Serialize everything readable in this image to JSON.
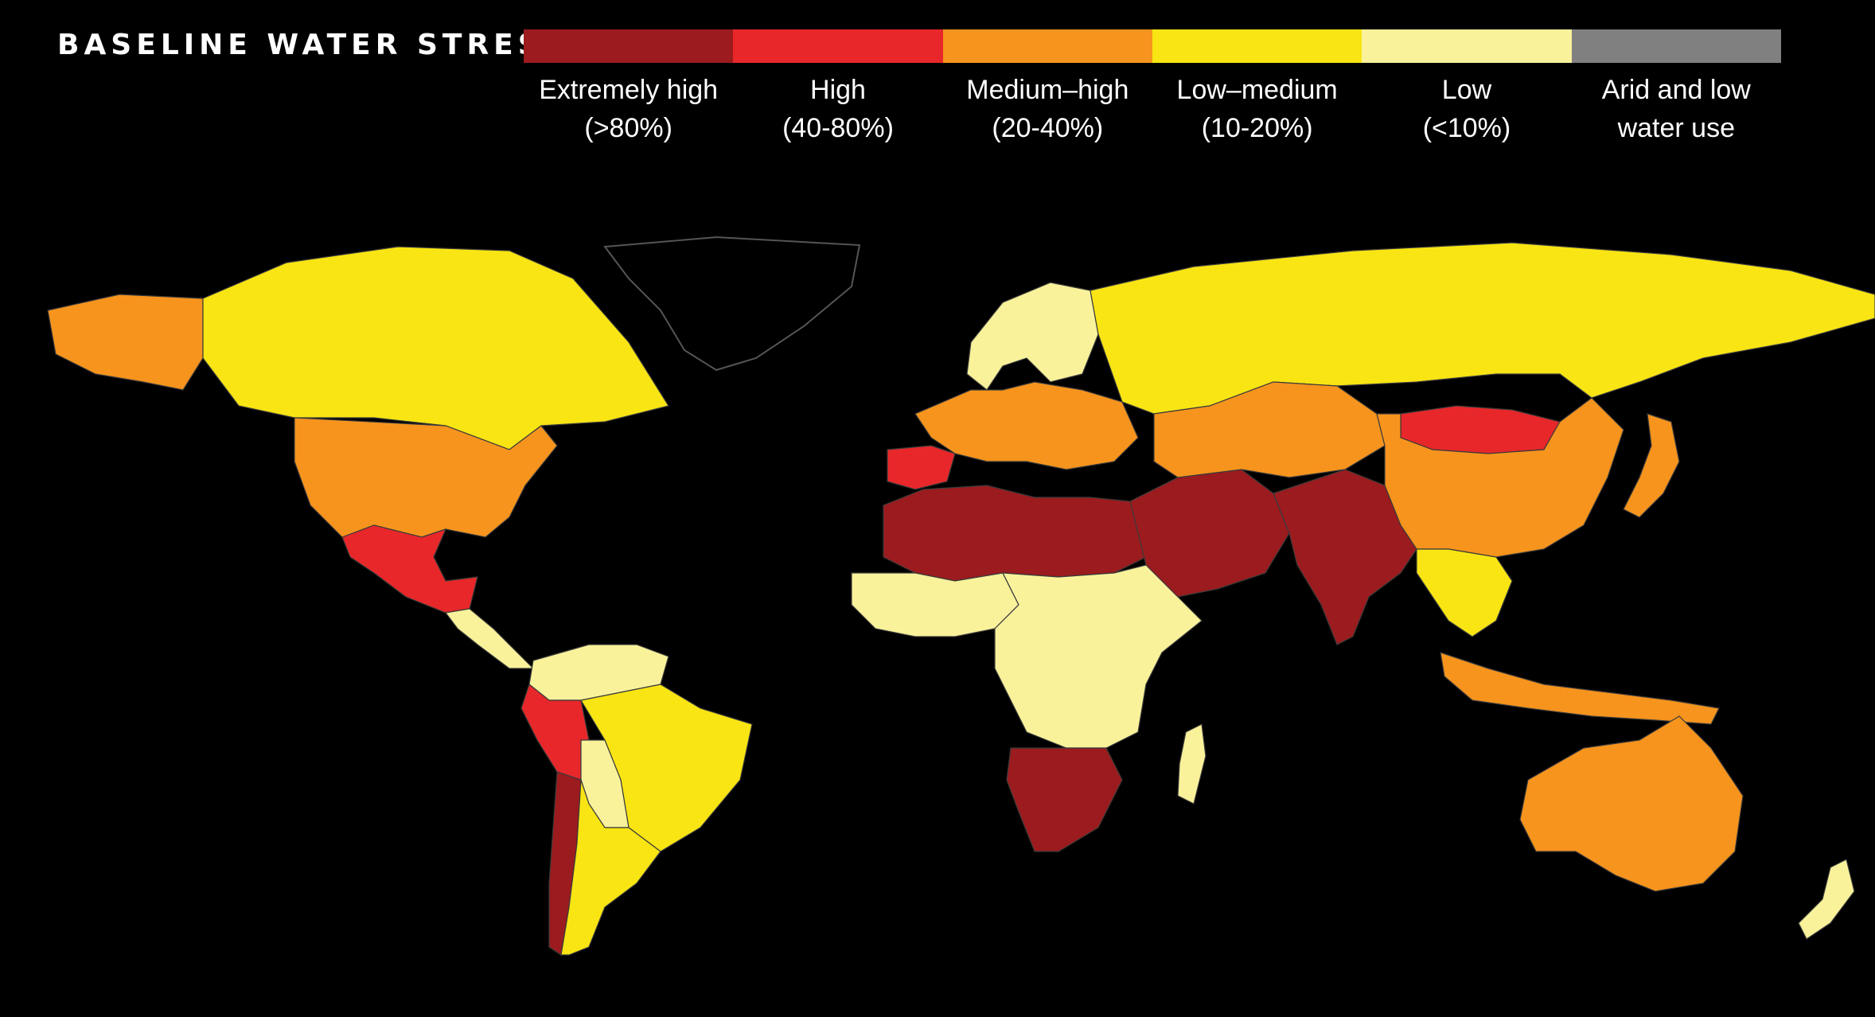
{
  "title": "BASELINE WATER STRESS",
  "legend": [
    {
      "line1": "Extremely high",
      "line2": "(>80%)",
      "color": "#9b1b1e"
    },
    {
      "line1": "High",
      "line2": "(40-80%)",
      "color": "#e8272a"
    },
    {
      "line1": "Medium–high",
      "line2": "(20-40%)",
      "color": "#f7941d"
    },
    {
      "line1": "Low–medium",
      "line2": "(10-20%)",
      "color": "#f8e513"
    },
    {
      "line1": "Low",
      "line2": "(<10%)",
      "color": "#f9f29b"
    },
    {
      "line1": "Arid and low",
      "line2": "water use",
      "color": "#808080"
    }
  ],
  "regions": [
    {
      "name": "greenland",
      "category": "none"
    },
    {
      "name": "alaska",
      "category": "Medium–high"
    },
    {
      "name": "canada",
      "category": "Low–medium"
    },
    {
      "name": "united-states",
      "category": "Medium–high"
    },
    {
      "name": "mexico",
      "category": "High"
    },
    {
      "name": "central-america",
      "category": "Low"
    },
    {
      "name": "colombia-venezuela",
      "category": "Low"
    },
    {
      "name": "brazil",
      "category": "Low–medium"
    },
    {
      "name": "peru",
      "category": "High"
    },
    {
      "name": "bolivia",
      "category": "Low"
    },
    {
      "name": "chile",
      "category": "Extremely high"
    },
    {
      "name": "argentina",
      "category": "Low–medium"
    },
    {
      "name": "scandinavia",
      "category": "Low"
    },
    {
      "name": "western-europe",
      "category": "Medium–high"
    },
    {
      "name": "iberia",
      "category": "High"
    },
    {
      "name": "russia",
      "category": "Low–medium"
    },
    {
      "name": "north-africa",
      "category": "Extremely high"
    },
    {
      "name": "west-africa",
      "category": "Low"
    },
    {
      "name": "central-africa",
      "category": "Low"
    },
    {
      "name": "southern-africa",
      "category": "Extremely high"
    },
    {
      "name": "madagascar",
      "category": "Low"
    },
    {
      "name": "middle-east",
      "category": "Extremely high"
    },
    {
      "name": "central-asia",
      "category": "Medium–high"
    },
    {
      "name": "india",
      "category": "Extremely high"
    },
    {
      "name": "mongolia",
      "category": "High"
    },
    {
      "name": "china",
      "category": "Medium–high"
    },
    {
      "name": "southeast-asia",
      "category": "Low–medium"
    },
    {
      "name": "indonesia",
      "category": "Medium–high"
    },
    {
      "name": "japan",
      "category": "Medium–high"
    },
    {
      "name": "australia",
      "category": "Medium–high"
    },
    {
      "name": "new-zealand",
      "category": "Low"
    }
  ]
}
